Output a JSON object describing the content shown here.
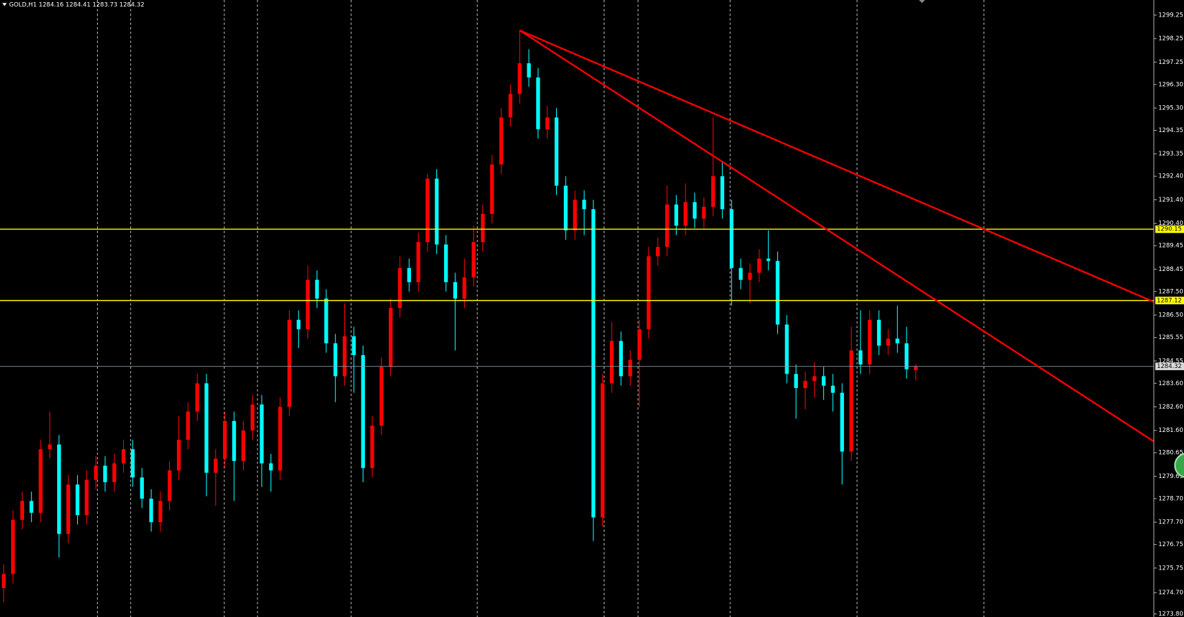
{
  "chart_data": {
    "type": "candlestick",
    "symbol": "GOLD,H1",
    "up_color": "#ff0000",
    "down_color": "#00ffff",
    "ylim": [
      1273.67,
      1299.89
    ],
    "yticks": [
      1299.25,
      1298.25,
      1297.25,
      {
        "value": 1296.3,
        "label": "1296.30"
      },
      {
        "value": 1295.3,
        "label": "1295.30"
      },
      1294.35,
      1293.35,
      {
        "value": 1292.4,
        "label": "1292.40"
      },
      {
        "value": 1291.4,
        "label": "1291.40"
      },
      {
        "value": 1290.4,
        "label": "1290.40"
      },
      1289.45,
      1288.45,
      {
        "value": 1287.5,
        "label": "1287.50"
      },
      {
        "value": 1286.5,
        "label": "1286.50"
      },
      1285.55,
      1284.55,
      {
        "value": 1283.6,
        "label": "1283.60"
      },
      {
        "value": 1282.6,
        "label": "1282.60"
      },
      {
        "value": 1281.6,
        "label": "1281.60"
      },
      1280.65,
      1279.65,
      {
        "value": 1278.7,
        "label": "1278.70"
      },
      {
        "value": 1277.7,
        "label": "1277.70"
      },
      1276.75,
      1275.75,
      {
        "value": 1274.7,
        "label": "1274.70"
      },
      {
        "value": 1273.8,
        "label": "1273.80"
      }
    ],
    "levels": [
      {
        "value": 1290.15,
        "color": "#ffff00"
      },
      {
        "value": 1287.12,
        "color": "#ffff00"
      }
    ],
    "trendlines": [
      {
        "color": "#ff0000",
        "x": [
          56,
          124.8
        ],
        "y": [
          1298.6,
          1287.07
        ]
      },
      {
        "color": "#ff0000",
        "x": [
          56,
          124.8
        ],
        "y": [
          1298.6,
          1281.14
        ]
      }
    ],
    "candles": [
      [
        1274.9,
        1275.9,
        1274.3,
        1275.5
      ],
      [
        1275.5,
        1278.2,
        1275.1,
        1277.8
      ],
      [
        1277.8,
        1279.0,
        1277.4,
        1278.6
      ],
      [
        1278.6,
        1279.0,
        1277.7,
        1278.1
      ],
      [
        1278.1,
        1281.2,
        1277.7,
        1280.8
      ],
      [
        1280.8,
        1282.4,
        1280.4,
        1281.0
      ],
      [
        1281.0,
        1281.4,
        1276.2,
        1277.2
      ],
      [
        1277.2,
        1279.7,
        1276.8,
        1279.3
      ],
      [
        1279.3,
        1279.7,
        1277.6,
        1278.0
      ],
      [
        1278.0,
        1279.9,
        1277.6,
        1279.5
      ],
      [
        1279.5,
        1280.5,
        1279.1,
        1280.1
      ],
      [
        1280.1,
        1280.5,
        1279.0,
        1279.4
      ],
      [
        1279.4,
        1280.6,
        1279.0,
        1280.2
      ],
      [
        1280.2,
        1281.2,
        1279.8,
        1280.8
      ],
      [
        1280.8,
        1281.2,
        1279.2,
        1279.6
      ],
      [
        1279.6,
        1280.0,
        1278.3,
        1278.7
      ],
      [
        1278.7,
        1279.1,
        1277.3,
        1277.7
      ],
      [
        1277.7,
        1279.0,
        1277.3,
        1278.6
      ],
      [
        1278.6,
        1280.3,
        1278.2,
        1279.9
      ],
      [
        1279.9,
        1282.2,
        1279.5,
        1281.2
      ],
      [
        1281.2,
        1282.8,
        1280.8,
        1282.4
      ],
      [
        1282.4,
        1284.0,
        1282.0,
        1283.6
      ],
      [
        1283.6,
        1284.0,
        1278.8,
        1279.8
      ],
      [
        1279.8,
        1280.8,
        1278.4,
        1280.4
      ],
      [
        1280.4,
        1282.4,
        1280.0,
        1282.0
      ],
      [
        1282.0,
        1282.4,
        1278.6,
        1280.3
      ],
      [
        1280.3,
        1282.0,
        1279.9,
        1281.6
      ],
      [
        1281.6,
        1283.1,
        1281.2,
        1282.7
      ],
      [
        1282.7,
        1283.1,
        1279.2,
        1280.2
      ],
      [
        1280.2,
        1280.6,
        1279.0,
        1279.9
      ],
      [
        1279.9,
        1283.0,
        1279.5,
        1282.6
      ],
      [
        1282.6,
        1286.7,
        1282.2,
        1286.3
      ],
      [
        1286.3,
        1286.7,
        1285.1,
        1285.9
      ],
      [
        1285.9,
        1288.6,
        1285.5,
        1288.0
      ],
      [
        1288.0,
        1288.4,
        1286.8,
        1287.2
      ],
      [
        1287.2,
        1287.6,
        1284.9,
        1285.3
      ],
      [
        1285.3,
        1285.7,
        1282.8,
        1283.9
      ],
      [
        1283.9,
        1287.0,
        1283.5,
        1285.6
      ],
      [
        1285.6,
        1286.0,
        1283.2,
        1284.8
      ],
      [
        1284.8,
        1285.2,
        1279.4,
        1280.0
      ],
      [
        1280.0,
        1282.2,
        1279.6,
        1281.8
      ],
      [
        1281.8,
        1284.7,
        1281.4,
        1284.3
      ],
      [
        1284.3,
        1287.2,
        1283.9,
        1286.8
      ],
      [
        1286.8,
        1289.0,
        1286.4,
        1288.5
      ],
      [
        1288.5,
        1288.9,
        1287.5,
        1287.9
      ],
      [
        1287.9,
        1290.0,
        1287.5,
        1289.6
      ],
      [
        1289.6,
        1292.5,
        1289.2,
        1292.3
      ],
      [
        1292.3,
        1292.7,
        1289.1,
        1289.5
      ],
      [
        1289.5,
        1289.9,
        1287.5,
        1287.9
      ],
      [
        1287.9,
        1288.3,
        1285.0,
        1287.2
      ],
      [
        1287.2,
        1288.9,
        1286.8,
        1288.1
      ],
      [
        1288.1,
        1290.3,
        1287.7,
        1289.6
      ],
      [
        1289.6,
        1291.2,
        1289.2,
        1290.8
      ],
      [
        1290.8,
        1293.3,
        1290.4,
        1292.9
      ],
      [
        1292.9,
        1295.3,
        1292.5,
        1294.9
      ],
      [
        1294.9,
        1296.3,
        1294.5,
        1295.9
      ],
      [
        1295.9,
        1298.6,
        1295.5,
        1297.2
      ],
      [
        1297.2,
        1297.8,
        1296.2,
        1296.6
      ],
      [
        1296.6,
        1297.0,
        1294.0,
        1294.4
      ],
      [
        1294.4,
        1295.4,
        1294.0,
        1294.9
      ],
      [
        1294.9,
        1295.3,
        1291.6,
        1292.0
      ],
      [
        1292.0,
        1292.4,
        1289.7,
        1290.1
      ],
      [
        1290.1,
        1291.8,
        1289.7,
        1291.4
      ],
      [
        1291.4,
        1291.8,
        1289.9,
        1291.0
      ],
      [
        1291.0,
        1291.4,
        1276.9,
        1277.9
      ],
      [
        1277.9,
        1284.0,
        1277.5,
        1283.6
      ],
      [
        1283.6,
        1286.2,
        1283.2,
        1285.4
      ],
      [
        1285.4,
        1285.8,
        1283.5,
        1283.9
      ],
      [
        1283.9,
        1285.0,
        1283.5,
        1284.6
      ],
      [
        1284.6,
        1286.3,
        1282.6,
        1285.9
      ],
      [
        1285.9,
        1289.4,
        1285.5,
        1289.0
      ],
      [
        1289.0,
        1289.8,
        1288.6,
        1289.4
      ],
      [
        1289.4,
        1292.0,
        1289.0,
        1291.2
      ],
      [
        1291.2,
        1291.6,
        1289.9,
        1290.3
      ],
      [
        1290.3,
        1292.1,
        1289.9,
        1291.3
      ],
      [
        1291.3,
        1291.7,
        1290.2,
        1290.6
      ],
      [
        1290.6,
        1291.5,
        1290.2,
        1291.1
      ],
      [
        1291.1,
        1294.9,
        1290.7,
        1292.4
      ],
      [
        1292.4,
        1293.0,
        1290.6,
        1291.0
      ],
      [
        1291.0,
        1291.4,
        1286.9,
        1288.5
      ],
      [
        1288.5,
        1288.9,
        1287.6,
        1288.0
      ],
      [
        1288.0,
        1288.7,
        1287.0,
        1288.3
      ],
      [
        1288.3,
        1289.3,
        1287.9,
        1288.9
      ],
      [
        1288.9,
        1290.1,
        1288.4,
        1288.8
      ],
      [
        1288.8,
        1289.2,
        1285.7,
        1286.1
      ],
      [
        1286.1,
        1286.5,
        1283.6,
        1284.0
      ],
      [
        1284.0,
        1284.4,
        1282.1,
        1283.4
      ],
      [
        1283.4,
        1284.1,
        1282.5,
        1283.7
      ],
      [
        1283.7,
        1284.5,
        1283.0,
        1283.9
      ],
      [
        1283.9,
        1284.3,
        1282.9,
        1283.5
      ],
      [
        1283.5,
        1284.0,
        1282.4,
        1283.2
      ],
      [
        1283.2,
        1283.6,
        1279.3,
        1280.7
      ],
      [
        1280.7,
        1286.0,
        1280.3,
        1285.0
      ],
      [
        1285.0,
        1286.7,
        1284.0,
        1284.4
      ],
      [
        1284.4,
        1286.7,
        1284.0,
        1286.3
      ],
      [
        1286.3,
        1286.7,
        1284.8,
        1285.2
      ],
      [
        1285.2,
        1285.9,
        1284.8,
        1285.5
      ],
      [
        1285.5,
        1286.9,
        1284.9,
        1285.3
      ],
      [
        1285.3,
        1286.0,
        1283.8,
        1284.2
      ],
      [
        1284.16,
        1284.41,
        1283.73,
        1284.32
      ]
    ]
  }
}
